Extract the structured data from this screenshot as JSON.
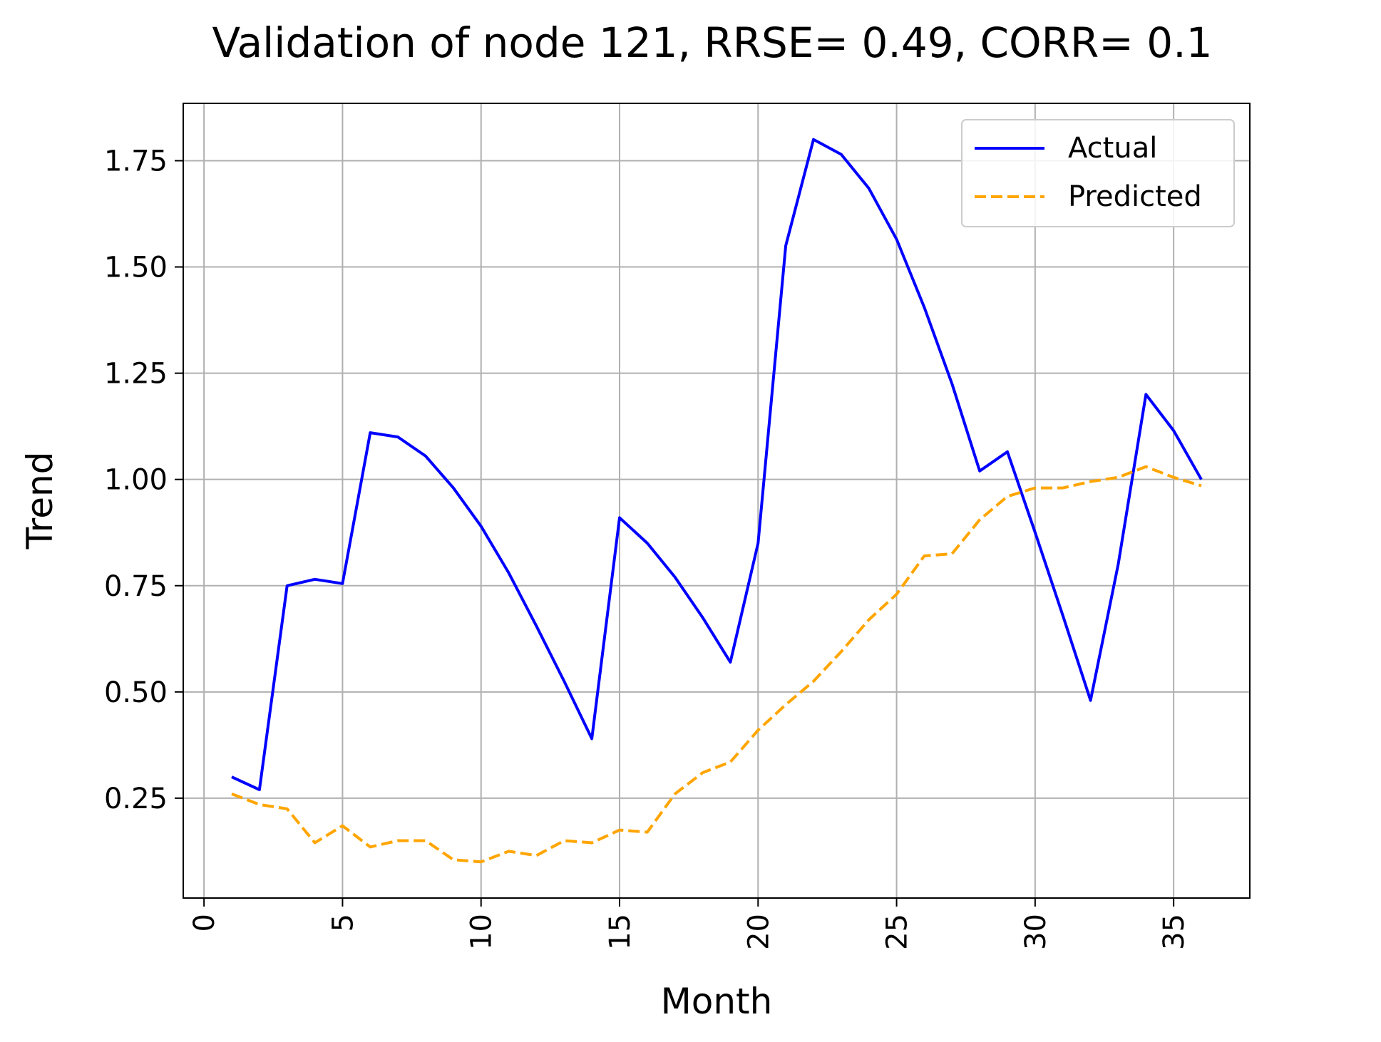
{
  "chart_data": {
    "type": "line",
    "title": "Validation of node 121, RRSE= 0.49, CORR= 0.1",
    "xlabel": "Month",
    "ylabel": "Trend",
    "xlim": [
      -0.75,
      37.75
    ],
    "ylim": [
      0.015,
      1.885
    ],
    "x_ticks": [
      0,
      5,
      10,
      15,
      20,
      25,
      30,
      35
    ],
    "y_ticks": [
      0.25,
      0.5,
      0.75,
      1.0,
      1.25,
      1.5,
      1.75
    ],
    "y_tick_labels": [
      "0.25",
      "0.50",
      "0.75",
      "1.00",
      "1.25",
      "1.50",
      "1.75"
    ],
    "grid": true,
    "legend_position": "top-right",
    "x": [
      1,
      2,
      3,
      4,
      5,
      6,
      7,
      8,
      9,
      10,
      11,
      12,
      13,
      14,
      15,
      16,
      17,
      18,
      19,
      20,
      21,
      22,
      23,
      24,
      25,
      26,
      27,
      28,
      29,
      30,
      31,
      32,
      33,
      34,
      35,
      36
    ],
    "series": [
      {
        "name": "Actual",
        "color": "#0000ff",
        "style": "solid",
        "values": [
          0.3,
          0.27,
          0.75,
          0.765,
          0.755,
          1.11,
          1.1,
          1.055,
          0.98,
          0.89,
          0.78,
          0.655,
          0.525,
          0.39,
          0.91,
          0.85,
          0.77,
          0.675,
          0.57,
          0.85,
          1.55,
          1.8,
          1.765,
          1.685,
          1.565,
          1.405,
          1.225,
          1.02,
          1.065,
          0.875,
          0.68,
          0.48,
          0.8,
          1.2,
          1.115,
          1.0
        ]
      },
      {
        "name": "Predicted",
        "color": "#ffa500",
        "style": "dashed",
        "values": [
          0.26,
          0.235,
          0.225,
          0.145,
          0.185,
          0.135,
          0.15,
          0.15,
          0.105,
          0.1,
          0.125,
          0.115,
          0.15,
          0.145,
          0.175,
          0.17,
          0.26,
          0.31,
          0.335,
          0.41,
          0.47,
          0.525,
          0.595,
          0.67,
          0.73,
          0.82,
          0.825,
          0.905,
          0.96,
          0.98,
          0.98,
          0.995,
          1.005,
          1.03,
          1.005,
          0.985
        ]
      }
    ]
  }
}
